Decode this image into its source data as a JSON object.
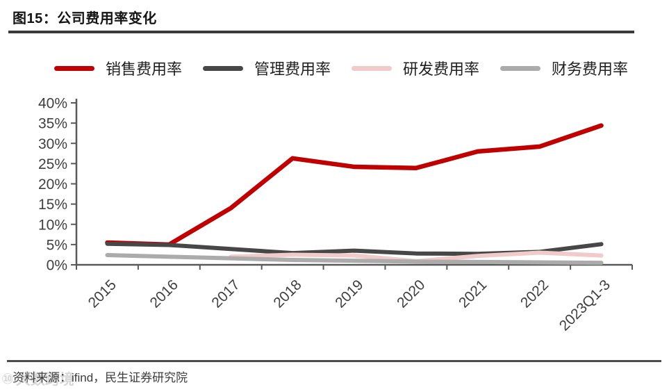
{
  "figure": {
    "title": "图15：公司费用率变化",
    "source": "资料来源：ifind，民生证券研究院",
    "watermark_logo": "⑩",
    "watermark_text": "大数跨境"
  },
  "chart_data": {
    "type": "line",
    "title": "公司费用率变化",
    "categories": [
      "2015",
      "2016",
      "2017",
      "2018",
      "2019",
      "2020",
      "2021",
      "2022",
      "2023Q1-3"
    ],
    "series": [
      {
        "key": "sales-expense-ratio",
        "name": "销售费用率",
        "color": "#C00000",
        "width": 6.5,
        "values": [
          5.5,
          5.0,
          14.0,
          26.3,
          24.2,
          23.9,
          28.0,
          29.2,
          34.4
        ]
      },
      {
        "key": "admin-expense-ratio",
        "name": "管理费用率",
        "color": "#474747",
        "width": 6,
        "values": [
          5.2,
          4.9,
          3.9,
          2.9,
          3.5,
          2.8,
          2.7,
          3.2,
          5.1
        ]
      },
      {
        "key": "rd-expense-ratio",
        "name": "研发费用率",
        "color": "#F0CBCA",
        "width": 6,
        "values": [
          null,
          null,
          2.0,
          2.5,
          2.3,
          0.9,
          2.2,
          3.0,
          2.3
        ]
      },
      {
        "key": "finance-expense-ratio",
        "name": "财务费用率",
        "color": "#ABABAB",
        "width": 6,
        "values": [
          2.4,
          2.0,
          1.6,
          1.2,
          1.0,
          0.8,
          0.7,
          0.6,
          0.5
        ]
      }
    ],
    "ylim": [
      0,
      40
    ],
    "ytick_step": 5,
    "ytick_suffix": "%",
    "grid": false,
    "legend_position": "top",
    "x_label_rotation": -45,
    "axis_color": "#595959",
    "tick_color": "#3F3F3F"
  }
}
